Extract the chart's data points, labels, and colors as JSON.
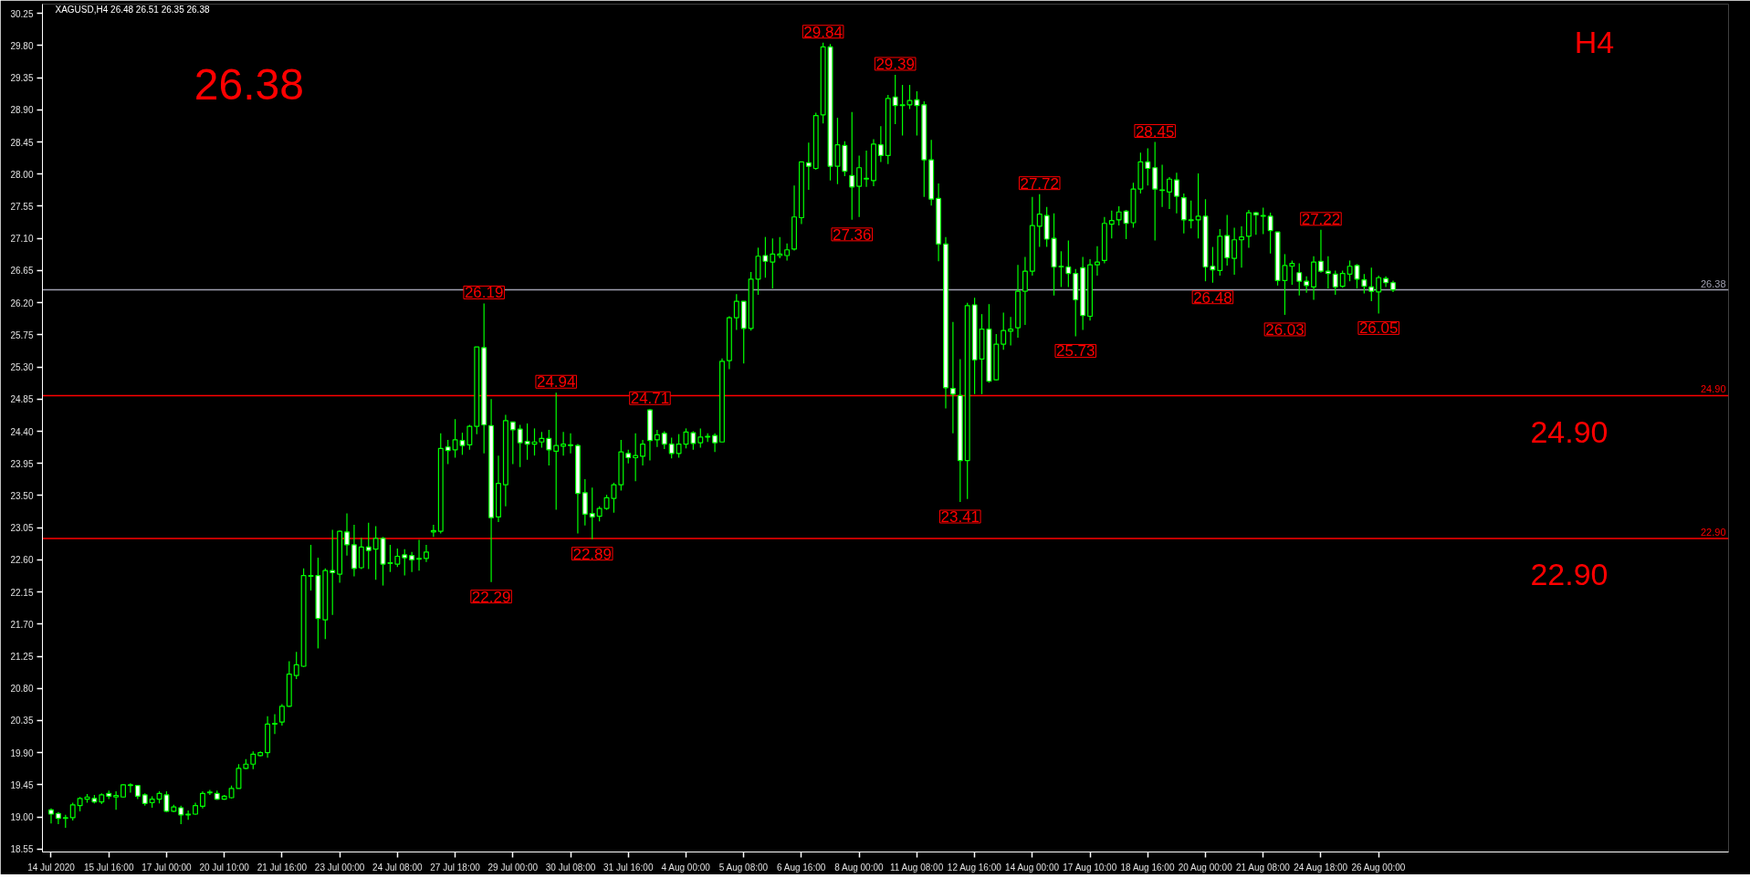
{
  "chart_data": {
    "type": "candlestick",
    "title": "XAGUSD,H4  26.48 26.51 26.35 26.38",
    "categories": [
      "14 Jul 2020",
      null,
      null,
      null,
      null,
      null,
      null,
      null,
      "15 Jul 16:00",
      null,
      null,
      null,
      null,
      null,
      null,
      null,
      "17 Jul 00:00",
      null,
      null,
      null,
      null,
      null,
      null,
      null,
      "20 Jul 10:00",
      null,
      null,
      null,
      null,
      null,
      null,
      null,
      "21 Jul 16:00",
      null,
      null,
      null,
      null,
      null,
      null,
      null,
      "23 Jul 00:00",
      null,
      null,
      null,
      null,
      null,
      null,
      null,
      "24 Jul 08:00",
      null,
      null,
      null,
      null,
      null,
      null,
      null,
      "27 Jul 18:00",
      null,
      null,
      null,
      null,
      null,
      null,
      null,
      "29 Jul 00:00",
      null,
      null,
      null,
      null,
      null,
      null,
      null,
      "30 Jul 08:00",
      null,
      null,
      null,
      null,
      null,
      null,
      null,
      "31 Jul 16:00",
      null,
      null,
      null,
      null,
      null,
      null,
      null,
      "4 Aug 00:00",
      null,
      null,
      null,
      null,
      null,
      null,
      null,
      "5 Aug 08:00",
      null,
      null,
      null,
      null,
      null,
      null,
      null,
      "6 Aug 16:00",
      null,
      null,
      null,
      null,
      null,
      null,
      null,
      "8 Aug 00:00",
      null,
      null,
      null,
      null,
      null,
      null,
      null,
      "11 Aug 08:00",
      null,
      null,
      null,
      null,
      null,
      null,
      null,
      "12 Aug 16:00",
      null,
      null,
      null,
      null,
      null,
      null,
      null,
      "14 Aug 00:00",
      null,
      null,
      null,
      null,
      null,
      null,
      null,
      "17 Aug 10:00",
      null,
      null,
      null,
      null,
      null,
      null,
      null,
      "18 Aug 16:00",
      null,
      null,
      null,
      null,
      null,
      null,
      null,
      "20 Aug 00:00",
      null,
      null,
      null,
      null,
      null,
      null,
      null,
      "21 Aug 08:00",
      null,
      null,
      null,
      null,
      null,
      null,
      null,
      "24 Aug 18:00",
      null,
      null,
      null,
      null,
      null,
      null,
      null,
      "26 Aug 00:00",
      null,
      null
    ],
    "ohlc": [
      [
        19.1,
        19.12,
        18.91,
        19.04
      ],
      [
        19.05,
        19.07,
        18.9,
        18.98
      ],
      [
        18.98,
        19.03,
        18.85,
        18.99
      ],
      [
        18.99,
        19.2,
        18.95,
        19.17
      ],
      [
        19.16,
        19.28,
        19.08,
        19.26
      ],
      [
        19.25,
        19.32,
        19.2,
        19.28
      ],
      [
        19.26,
        19.31,
        19.19,
        19.21
      ],
      [
        19.21,
        19.33,
        19.18,
        19.31
      ],
      [
        19.33,
        19.37,
        19.25,
        19.29
      ],
      [
        19.28,
        19.36,
        19.1,
        19.3
      ],
      [
        19.28,
        19.46,
        19.27,
        19.45
      ],
      [
        19.44,
        19.47,
        19.34,
        19.45
      ],
      [
        19.44,
        19.44,
        19.25,
        19.29
      ],
      [
        19.31,
        19.33,
        19.16,
        19.19
      ],
      [
        19.2,
        19.29,
        19.13,
        19.25
      ],
      [
        19.25,
        19.36,
        19.19,
        19.33
      ],
      [
        19.31,
        19.36,
        19.07,
        19.08
      ],
      [
        19.08,
        19.17,
        19.07,
        19.14
      ],
      [
        19.13,
        19.16,
        18.9,
        19.03
      ],
      [
        19.03,
        19.09,
        18.96,
        19.04
      ],
      [
        19.04,
        19.2,
        19.03,
        19.16
      ],
      [
        19.15,
        19.36,
        19.12,
        19.33
      ],
      [
        19.34,
        19.38,
        19.31,
        19.35
      ],
      [
        19.33,
        19.37,
        19.24,
        19.25
      ],
      [
        19.25,
        19.31,
        19.24,
        19.29
      ],
      [
        19.27,
        19.44,
        19.26,
        19.4
      ],
      [
        19.4,
        19.74,
        19.4,
        19.68
      ],
      [
        19.68,
        19.81,
        19.67,
        19.74
      ],
      [
        19.74,
        19.92,
        19.67,
        19.88
      ],
      [
        19.86,
        19.92,
        19.85,
        19.9
      ],
      [
        19.9,
        20.41,
        19.83,
        20.3
      ],
      [
        20.3,
        20.44,
        20.16,
        20.31
      ],
      [
        20.33,
        20.58,
        20.28,
        20.55
      ],
      [
        20.55,
        21.18,
        20.54,
        21.0
      ],
      [
        20.98,
        21.31,
        20.93,
        21.13
      ],
      [
        21.11,
        22.48,
        21.1,
        22.38
      ],
      [
        22.37,
        22.81,
        22.17,
        22.38
      ],
      [
        22.38,
        22.63,
        21.36,
        21.78
      ],
      [
        21.76,
        22.48,
        21.49,
        22.45
      ],
      [
        22.45,
        23.02,
        21.83,
        22.42
      ],
      [
        22.4,
        23.01,
        22.28,
        23.0
      ],
      [
        22.99,
        23.25,
        22.66,
        22.81
      ],
      [
        22.81,
        23.09,
        22.37,
        22.48
      ],
      [
        22.49,
        22.91,
        22.47,
        22.78
      ],
      [
        22.78,
        23.12,
        22.47,
        22.73
      ],
      [
        22.75,
        23.07,
        22.32,
        22.9
      ],
      [
        22.9,
        22.92,
        22.24,
        22.54
      ],
      [
        22.56,
        22.81,
        22.43,
        22.55
      ],
      [
        22.54,
        22.76,
        22.5,
        22.65
      ],
      [
        22.67,
        22.75,
        22.38,
        22.63
      ],
      [
        22.66,
        22.71,
        22.43,
        22.6
      ],
      [
        22.61,
        22.88,
        22.45,
        22.62
      ],
      [
        22.62,
        22.81,
        22.57,
        22.71
      ],
      [
        22.99,
        23.09,
        22.92,
        23.01
      ],
      [
        23.0,
        24.37,
        22.97,
        24.16
      ],
      [
        24.18,
        24.28,
        23.94,
        24.13
      ],
      [
        24.14,
        24.57,
        24.03,
        24.28
      ],
      [
        24.27,
        24.38,
        24.07,
        24.2
      ],
      [
        24.21,
        24.49,
        24.14,
        24.47
      ],
      [
        24.47,
        25.58,
        24.36,
        25.58
      ],
      [
        25.57,
        26.19,
        24.09,
        24.49
      ],
      [
        24.48,
        24.85,
        22.29,
        23.19
      ],
      [
        23.2,
        24.06,
        23.13,
        23.67
      ],
      [
        23.65,
        24.63,
        23.35,
        24.55
      ],
      [
        24.53,
        24.53,
        23.94,
        24.42
      ],
      [
        24.43,
        24.49,
        23.9,
        24.24
      ],
      [
        24.26,
        24.51,
        24.0,
        24.22
      ],
      [
        24.22,
        24.44,
        24.06,
        24.25
      ],
      [
        24.25,
        24.39,
        24.17,
        24.3
      ],
      [
        24.3,
        24.42,
        23.92,
        24.14
      ],
      [
        24.12,
        24.94,
        23.3,
        24.2
      ],
      [
        24.19,
        24.39,
        24.06,
        24.22
      ],
      [
        24.21,
        24.37,
        24.09,
        24.2
      ],
      [
        24.2,
        24.22,
        22.97,
        23.53
      ],
      [
        23.54,
        23.73,
        23.08,
        23.24
      ],
      [
        23.25,
        23.61,
        22.89,
        23.2
      ],
      [
        23.21,
        23.35,
        23.14,
        23.32
      ],
      [
        23.32,
        23.51,
        23.3,
        23.47
      ],
      [
        23.46,
        23.68,
        23.26,
        23.65
      ],
      [
        23.65,
        24.28,
        23.57,
        24.11
      ],
      [
        24.09,
        24.14,
        23.95,
        24.03
      ],
      [
        24.03,
        24.37,
        23.7,
        24.06
      ],
      [
        24.05,
        24.28,
        23.92,
        24.22
      ],
      [
        24.7,
        24.71,
        23.99,
        24.27
      ],
      [
        24.28,
        24.42,
        24.18,
        24.35
      ],
      [
        24.37,
        24.4,
        24.15,
        24.22
      ],
      [
        24.22,
        24.31,
        24.02,
        24.09
      ],
      [
        24.09,
        24.36,
        24.03,
        24.22
      ],
      [
        24.22,
        24.44,
        24.16,
        24.39
      ],
      [
        24.38,
        24.4,
        24.14,
        24.23
      ],
      [
        24.24,
        24.44,
        24.17,
        24.32
      ],
      [
        24.32,
        24.37,
        24.25,
        24.33
      ],
      [
        24.34,
        24.37,
        24.11,
        24.24
      ],
      [
        24.25,
        25.42,
        24.25,
        25.38
      ],
      [
        25.39,
        26.01,
        25.27,
        25.99
      ],
      [
        25.99,
        26.32,
        25.82,
        26.22
      ],
      [
        26.22,
        26.22,
        25.35,
        25.84
      ],
      [
        25.84,
        26.63,
        25.81,
        26.53
      ],
      [
        26.53,
        26.97,
        26.31,
        26.85
      ],
      [
        26.86,
        27.12,
        26.55,
        26.78
      ],
      [
        26.77,
        27.1,
        26.4,
        26.88
      ],
      [
        26.86,
        27.12,
        26.82,
        26.88
      ],
      [
        26.86,
        27.03,
        26.79,
        26.94
      ],
      [
        26.95,
        27.84,
        26.93,
        27.4
      ],
      [
        27.39,
        28.17,
        27.3,
        28.17
      ],
      [
        28.16,
        28.44,
        27.78,
        28.11
      ],
      [
        28.08,
        28.86,
        28.06,
        28.82
      ],
      [
        28.83,
        29.84,
        28.71,
        29.78
      ],
      [
        29.78,
        29.82,
        27.91,
        28.11
      ],
      [
        28.11,
        28.79,
        27.86,
        28.41
      ],
      [
        28.4,
        28.46,
        27.97,
        28.04
      ],
      [
        27.98,
        28.87,
        27.36,
        27.82
      ],
      [
        27.83,
        28.26,
        27.4,
        28.09
      ],
      [
        27.93,
        28.33,
        27.82,
        27.94
      ],
      [
        27.91,
        28.49,
        27.83,
        28.42
      ],
      [
        28.41,
        28.67,
        28.17,
        28.26
      ],
      [
        28.26,
        29.11,
        28.14,
        29.06
      ],
      [
        29.08,
        29.39,
        28.7,
        28.96
      ],
      [
        28.96,
        29.25,
        28.54,
        28.97
      ],
      [
        28.97,
        29.25,
        28.91,
        29.03
      ],
      [
        29.04,
        29.16,
        28.54,
        28.96
      ],
      [
        28.97,
        29.02,
        27.68,
        28.2
      ],
      [
        28.2,
        28.48,
        27.56,
        27.65
      ],
      [
        27.66,
        27.87,
        26.78,
        27.02
      ],
      [
        27.02,
        27.12,
        24.72,
        25.01
      ],
      [
        25.0,
        25.93,
        24.37,
        24.92
      ],
      [
        24.9,
        25.41,
        23.41,
        23.99
      ],
      [
        23.99,
        26.2,
        23.45,
        26.16
      ],
      [
        26.17,
        26.27,
        24.92,
        25.4
      ],
      [
        25.41,
        26.04,
        24.92,
        25.83
      ],
      [
        25.83,
        26.18,
        25.08,
        25.1
      ],
      [
        25.12,
        25.76,
        25.11,
        25.62
      ],
      [
        25.62,
        26.06,
        25.54,
        25.81
      ],
      [
        25.8,
        26.0,
        25.6,
        25.83
      ],
      [
        25.85,
        26.73,
        25.71,
        26.36
      ],
      [
        26.36,
        26.84,
        25.89,
        26.64
      ],
      [
        26.64,
        27.68,
        26.58,
        27.28
      ],
      [
        27.27,
        27.72,
        26.98,
        27.44
      ],
      [
        27.42,
        27.54,
        26.98,
        27.09
      ],
      [
        27.1,
        27.45,
        26.3,
        26.7
      ],
      [
        26.71,
        26.92,
        26.42,
        26.7
      ],
      [
        26.7,
        27.07,
        26.42,
        26.61
      ],
      [
        26.61,
        26.67,
        25.73,
        26.24
      ],
      [
        26.69,
        26.84,
        25.82,
        26.02
      ],
      [
        26.01,
        26.81,
        25.95,
        26.73
      ],
      [
        26.73,
        26.99,
        26.58,
        26.77
      ],
      [
        26.79,
        27.4,
        26.75,
        27.31
      ],
      [
        27.3,
        27.49,
        27.1,
        27.35
      ],
      [
        27.36,
        27.55,
        27.28,
        27.47
      ],
      [
        27.48,
        27.5,
        27.09,
        27.31
      ],
      [
        27.32,
        27.88,
        27.25,
        27.79
      ],
      [
        27.79,
        28.3,
        27.73,
        28.17
      ],
      [
        28.17,
        28.36,
        27.84,
        28.08
      ],
      [
        28.09,
        28.45,
        27.07,
        27.79
      ],
      [
        27.78,
        28.13,
        27.54,
        27.77
      ],
      [
        27.75,
        27.96,
        27.51,
        27.93
      ],
      [
        27.92,
        28.02,
        27.45,
        27.69
      ],
      [
        27.67,
        27.73,
        27.17,
        27.36
      ],
      [
        27.35,
        27.63,
        27.24,
        27.36
      ],
      [
        27.36,
        28.01,
        27.1,
        27.41
      ],
      [
        27.41,
        27.65,
        26.5,
        26.7
      ],
      [
        26.71,
        26.98,
        26.48,
        26.66
      ],
      [
        26.65,
        27.23,
        26.58,
        27.13
      ],
      [
        27.14,
        27.43,
        26.72,
        26.83
      ],
      [
        26.82,
        27.25,
        26.59,
        27.08
      ],
      [
        27.08,
        27.27,
        26.69,
        27.12
      ],
      [
        27.13,
        27.5,
        26.97,
        27.46
      ],
      [
        27.46,
        27.47,
        27.15,
        27.43
      ],
      [
        27.41,
        27.53,
        27.16,
        27.42
      ],
      [
        27.41,
        27.46,
        26.89,
        27.21
      ],
      [
        27.19,
        27.19,
        26.44,
        26.51
      ],
      [
        26.51,
        26.88,
        26.03,
        26.72
      ],
      [
        26.71,
        26.79,
        26.45,
        26.75
      ],
      [
        26.62,
        26.75,
        26.3,
        26.5
      ],
      [
        26.5,
        26.57,
        26.34,
        26.44
      ],
      [
        26.42,
        26.85,
        26.24,
        26.77
      ],
      [
        26.78,
        27.22,
        26.62,
        26.64
      ],
      [
        26.64,
        26.85,
        26.4,
        26.61
      ],
      [
        26.6,
        26.65,
        26.31,
        26.42
      ],
      [
        26.43,
        26.65,
        26.41,
        26.61
      ],
      [
        26.6,
        26.79,
        26.5,
        26.71
      ],
      [
        26.72,
        26.74,
        26.4,
        26.53
      ],
      [
        26.52,
        26.6,
        26.33,
        26.43
      ],
      [
        26.42,
        26.69,
        26.22,
        26.36
      ],
      [
        26.35,
        26.58,
        26.05,
        26.55
      ],
      [
        26.54,
        26.57,
        26.42,
        26.48
      ],
      [
        26.48,
        26.51,
        26.35,
        26.38
      ]
    ],
    "ylim": [
      18.51,
      30.38
    ],
    "yticks": [
      {
        "value": 18.55,
        "label": "18.55"
      },
      {
        "value": 19.0,
        "label": "19.00"
      },
      {
        "value": 19.45,
        "label": "19.45"
      },
      {
        "value": 19.9,
        "label": "19.90"
      },
      {
        "value": 20.35,
        "label": "20.35"
      },
      {
        "value": 20.8,
        "label": "20.80"
      },
      {
        "value": 21.25,
        "label": "21.25"
      },
      {
        "value": 21.7,
        "label": "21.70"
      },
      {
        "value": 22.15,
        "label": "22.15"
      },
      {
        "value": 22.6,
        "label": "22.60"
      },
      {
        "value": 23.05,
        "label": "23.05"
      },
      {
        "value": 23.5,
        "label": "23.50"
      },
      {
        "value": 23.95,
        "label": "23.95"
      },
      {
        "value": 24.4,
        "label": "24.40"
      },
      {
        "value": 24.85,
        "label": "24.85"
      },
      {
        "value": 25.3,
        "label": "25.30"
      },
      {
        "value": 25.75,
        "label": "25.75"
      },
      {
        "value": 26.2,
        "label": "26.20"
      },
      {
        "value": 26.65,
        "label": "26.65"
      },
      {
        "value": 27.1,
        "label": "27.10"
      },
      {
        "value": 27.55,
        "label": "27.55"
      },
      {
        "value": 28.0,
        "label": "28.00"
      },
      {
        "value": 28.45,
        "label": "28.45"
      },
      {
        "value": 28.9,
        "label": "28.90"
      },
      {
        "value": 29.35,
        "label": "29.35"
      },
      {
        "value": 29.8,
        "label": "29.80"
      },
      {
        "value": 30.25,
        "label": "30.25"
      }
    ],
    "ref_lines": [
      {
        "axis": "y",
        "value": 26.38,
        "label": "26.38",
        "color": "#a0a0b0"
      },
      {
        "axis": "y",
        "value": 24.9,
        "label": "24.90",
        "color": "#ff0000"
      },
      {
        "axis": "y",
        "value": 22.9,
        "label": "22.90",
        "color": "#ff0000"
      }
    ],
    "annotations": [
      "26.38",
      "H4",
      {
        "text": "29.84",
        "y": 29.84
      },
      {
        "text": "29.39",
        "y": 29.39
      },
      {
        "text": "27.36",
        "y": 27.36
      },
      {
        "text": "27.72",
        "y": 27.72
      },
      {
        "text": "28.45",
        "y": 28.45
      },
      {
        "text": "26.19",
        "y": 26.19
      },
      {
        "text": "24.94",
        "y": 24.94
      },
      {
        "text": "24.71",
        "y": 24.71
      },
      {
        "text": "22.29",
        "y": 22.29
      },
      {
        "text": "22.89",
        "y": 22.89
      },
      {
        "text": "23.41",
        "y": 23.41
      },
      {
        "text": "25.73",
        "y": 25.73
      },
      {
        "text": "26.48",
        "y": 26.48
      },
      {
        "text": "26.03",
        "y": 26.03
      },
      {
        "text": "27.22",
        "y": 27.22
      },
      {
        "text": "26.05",
        "y": 26.05
      },
      {
        "text": "24.90",
        "y": 24.9
      },
      {
        "text": "22.90",
        "y": 22.9
      }
    ],
    "grid": false
  }
}
